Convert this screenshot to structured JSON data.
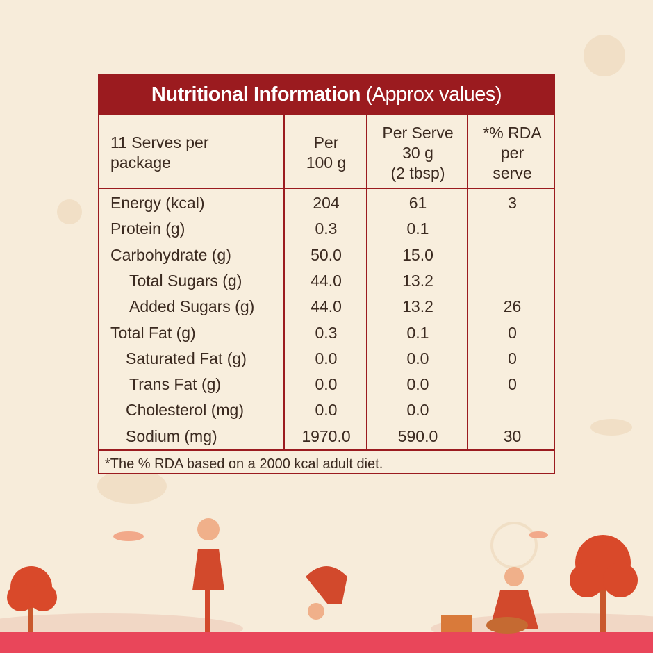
{
  "title": {
    "main": "Nutritional Information",
    "sub": "(Approx values)"
  },
  "header": {
    "columns": [
      [
        "11 Serves per",
        "package"
      ],
      [
        "Per",
        "100 g"
      ],
      [
        "Per Serve",
        "30 g",
        "(2 tbsp)"
      ],
      [
        "*% RDA",
        "per",
        "serve"
      ]
    ]
  },
  "rows": [
    {
      "label": "Energy (kcal)",
      "per_100g": "204",
      "per_serve": "61",
      "rda": "3"
    },
    {
      "label": "Protein (g)",
      "per_100g": "0.3",
      "per_serve": "0.1"
    },
    {
      "label": "Carbohydrate (g)",
      "per_100g": "50.0",
      "per_serve": "15.0"
    },
    {
      "label": "Total Sugars (g)",
      "per_100g": "44.0",
      "per_serve": "13.2"
    },
    {
      "label": "Added Sugars (g)",
      "per_100g": "44.0",
      "per_serve": "13.2",
      "rda": "26"
    },
    {
      "label": "Total Fat (g)",
      "per_100g": "0.3",
      "per_serve": "0.1",
      "rda": "0"
    },
    {
      "label": "Saturated Fat (g)",
      "per_100g": "0.0",
      "per_serve": "0.0",
      "rda": "0"
    },
    {
      "label": "Trans Fat (g)",
      "per_100g": "0.0",
      "per_serve": "0.0",
      "rda": "0"
    },
    {
      "label": "Cholesterol (mg)",
      "per_100g": "0.0",
      "per_serve": "0.0"
    },
    {
      "label": "Sodium (mg)",
      "per_100g": "1970.0",
      "per_serve": "590.0",
      "rda": "30"
    }
  ],
  "footnote": "*The % RDA based on a 2000 kcal adult diet."
}
